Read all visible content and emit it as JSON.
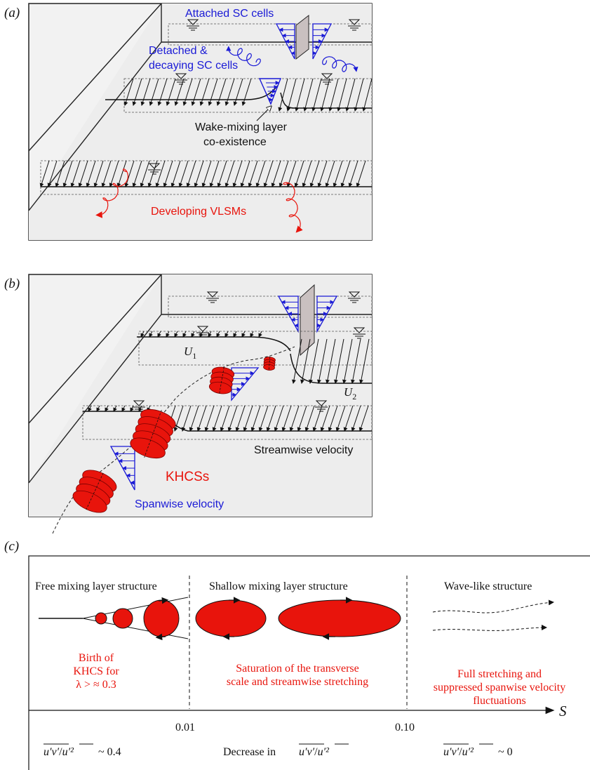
{
  "panel_a": {
    "label": "(a)",
    "attached_sc_cells": "Attached SC cells",
    "detached_line1": "Detached &",
    "detached_line2": "decaying SC cells",
    "wake_line1": "Wake-mixing layer",
    "wake_line2": "co-existence",
    "developing_vlsms": "Developing VLSMs"
  },
  "panel_b": {
    "label": "(b)",
    "u1": "U",
    "u1_sub": "1",
    "u2": "U",
    "u2_sub": "2",
    "streamwise_velocity": "Streamwise velocity",
    "khcss": "KHCSs",
    "spanwise_velocity": "Spanwise velocity"
  },
  "panel_c": {
    "label": "(c)",
    "regime_free": "Free mixing layer structure",
    "regime_shallow": "Shallow mixing layer structure",
    "regime_wave": "Wave-like structure",
    "birth_line1": "Birth of",
    "birth_line2": "KHCS for",
    "birth_line3": "λ > ≈ 0.3",
    "saturation_line1": "Saturation of the transverse",
    "saturation_line2": "scale and streamwise stretching",
    "full_line1": "Full stretching and",
    "full_line2": "suppressed spanwise velocity",
    "full_line3": "fluctuations",
    "axis_label": "S",
    "tick_001": "0.01",
    "tick_010": "0.10",
    "stress_left_value": "~ 0.4",
    "stress_mid_prefix": "Decrease in",
    "stress_right_value": "~ 0",
    "stress_numerator": "u′v′",
    "stress_denominator": "u′²"
  },
  "colors": {
    "blue": "#1a1ad6",
    "red": "#e8140c",
    "channel_fill": "#eeeeee",
    "plate_fill": "#c9c0c0"
  }
}
